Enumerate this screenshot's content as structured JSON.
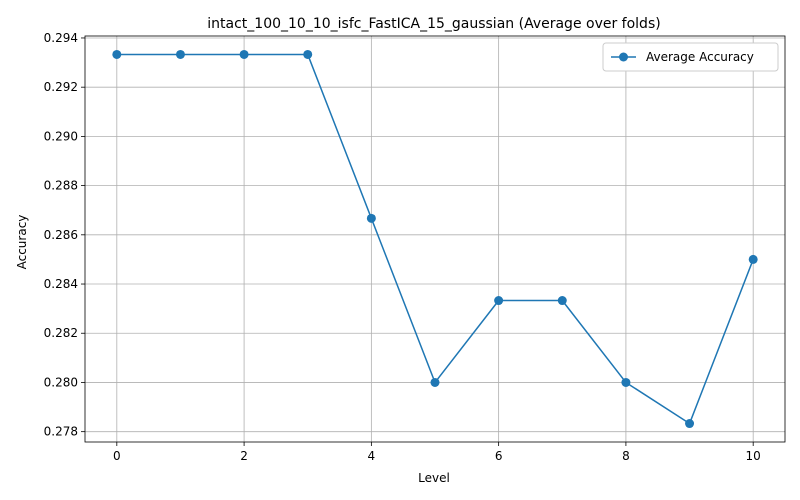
{
  "chart_data": {
    "type": "line",
    "title": "intact_100_10_10_isfc_FastICA_15_gaussian (Average over folds)",
    "xlabel": "Level",
    "ylabel": "Accuracy",
    "x": [
      0,
      1,
      2,
      3,
      4,
      5,
      6,
      7,
      8,
      9,
      10
    ],
    "series": [
      {
        "name": "Average Accuracy",
        "color": "#1f77b4",
        "marker": "circle",
        "values": [
          0.29333,
          0.29333,
          0.29333,
          0.29333,
          0.28667,
          0.28,
          0.28333,
          0.28333,
          0.28,
          0.27833,
          0.285
        ]
      }
    ],
    "xlim": [
      -0.5,
      10.5
    ],
    "ylim": [
      0.27758,
      0.29408
    ],
    "xticks": [
      0,
      2,
      4,
      6,
      8,
      10
    ],
    "yticks": [
      0.278,
      0.28,
      0.282,
      0.284,
      0.286,
      0.288,
      0.29,
      0.292,
      0.294
    ],
    "ytick_labels": [
      "0.278",
      "0.280",
      "0.282",
      "0.284",
      "0.286",
      "0.288",
      "0.290",
      "0.292",
      "0.294"
    ],
    "grid": true,
    "legend_position": "top-right"
  }
}
